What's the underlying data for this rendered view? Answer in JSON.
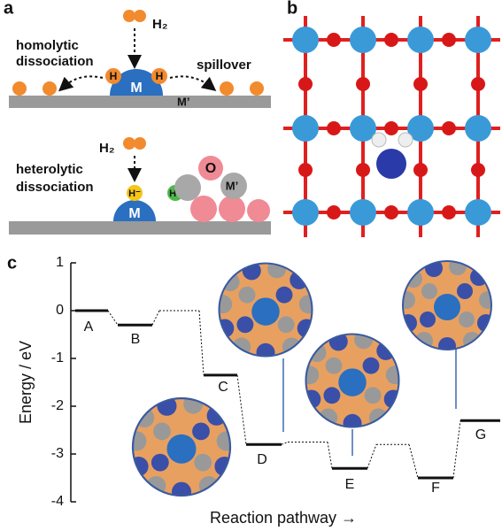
{
  "panel_a": {
    "label": "a",
    "top": {
      "h2": "H₂",
      "title": [
        "homolytic",
        "dissociation"
      ],
      "spillover": "spillover",
      "metal": "M",
      "h_left": "H",
      "h_right": "H",
      "support": "M’"
    },
    "bottom": {
      "h2": "H₂",
      "title": [
        "heterolytic",
        "dissociation"
      ],
      "hydride": "H⁻",
      "proton": "H⁺",
      "metal": "M",
      "oxygen": "O",
      "support": "M’"
    }
  },
  "panel_b": {
    "label": "b"
  },
  "chart_data": {
    "type": "energy-profile",
    "label": "c",
    "categories": [
      "A",
      "B",
      null,
      "C",
      "D",
      null,
      "E",
      null,
      "F",
      "G"
    ],
    "values": [
      0,
      -0.3,
      0,
      -1.35,
      -2.8,
      -2.75,
      -3.3,
      -2.8,
      -3.5,
      -2.3
    ],
    "ylabel": "Energy / eV",
    "xlabel": "Reaction pathway →",
    "ylim": [
      -4,
      1
    ],
    "yticks": [
      1,
      0,
      -1,
      -2,
      -3,
      -4
    ]
  }
}
